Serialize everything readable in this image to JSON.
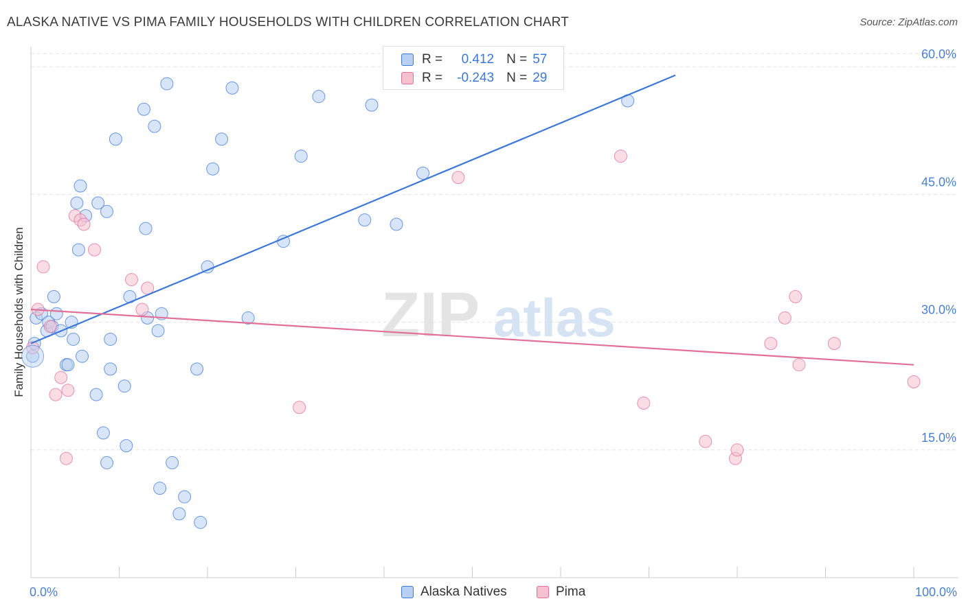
{
  "title": "ALASKA NATIVE VS PIMA FAMILY HOUSEHOLDS WITH CHILDREN CORRELATION CHART",
  "source": "Source: ZipAtlas.com",
  "watermark": {
    "zip": "ZIP",
    "atlas": "atlas"
  },
  "legend": {
    "row1": {
      "r_label": "R =",
      "r_value": "0.412",
      "n_label": "N =",
      "n_value": "57"
    },
    "row2": {
      "r_label": "R =",
      "r_value": "-0.243",
      "n_label": "N =",
      "n_value": "29"
    }
  },
  "colors": {
    "blue": "#3b78d8",
    "blue_fill": "#b8d0f2",
    "pink": "#e07098",
    "pink_fill": "#f6c0d0",
    "tick": "#4a7fd0"
  },
  "chart_data": {
    "type": "scatter",
    "title": "ALASKA NATIVE VS PIMA FAMILY HOUSEHOLDS WITH CHILDREN CORRELATION CHART",
    "ylabel": "Family Households with Children",
    "xlabel": "",
    "xlim": [
      0,
      100
    ],
    "ylim": [
      0,
      63
    ],
    "x_ticks": [
      "0.0%",
      "100.0%"
    ],
    "y_ticks": [
      {
        "value": 15,
        "label": "15.0%"
      },
      {
        "value": 30,
        "label": "30.0%"
      },
      {
        "value": 45,
        "label": "45.0%"
      },
      {
        "value": 60,
        "label": "60.0%"
      }
    ],
    "grid": true,
    "legend_position": "top-center",
    "series": [
      {
        "name": "Alaska Natives",
        "color": "#3b78d8",
        "points": [
          [
            0.2,
            26
          ],
          [
            0.4,
            27.5
          ],
          [
            0.6,
            30.5
          ],
          [
            1.2,
            31
          ],
          [
            1.8,
            29
          ],
          [
            2,
            30
          ],
          [
            2.4,
            29.5
          ],
          [
            2.6,
            33
          ],
          [
            2.9,
            31
          ],
          [
            3.4,
            29
          ],
          [
            4,
            25
          ],
          [
            4.2,
            25
          ],
          [
            4.6,
            30
          ],
          [
            4.8,
            28
          ],
          [
            5.2,
            44
          ],
          [
            5.4,
            38.5
          ],
          [
            5.6,
            46
          ],
          [
            5.8,
            26
          ],
          [
            6.2,
            42.5
          ],
          [
            7.4,
            21.5
          ],
          [
            7.6,
            44
          ],
          [
            8.2,
            17
          ],
          [
            8.6,
            43
          ],
          [
            8.6,
            13.5
          ],
          [
            9,
            28
          ],
          [
            9,
            24.5
          ],
          [
            9.6,
            51.5
          ],
          [
            10.6,
            22.5
          ],
          [
            10.8,
            15.5
          ],
          [
            11.2,
            33
          ],
          [
            12.8,
            55
          ],
          [
            13,
            41
          ],
          [
            13.2,
            30.5
          ],
          [
            14,
            53
          ],
          [
            14.4,
            29
          ],
          [
            14.6,
            10.5
          ],
          [
            14.8,
            31
          ],
          [
            15.4,
            58
          ],
          [
            16,
            13.5
          ],
          [
            16.8,
            7.5
          ],
          [
            17.4,
            9.5
          ],
          [
            18.8,
            24.5
          ],
          [
            19.2,
            6.5
          ],
          [
            20,
            36.5
          ],
          [
            20.6,
            48
          ],
          [
            21.6,
            51.5
          ],
          [
            22.8,
            57.5
          ],
          [
            24.6,
            30.5
          ],
          [
            28.6,
            39.5
          ],
          [
            30.6,
            49.5
          ],
          [
            32.6,
            56.5
          ],
          [
            37.8,
            42
          ],
          [
            38.6,
            55.5
          ],
          [
            41.4,
            41.5
          ],
          [
            44.4,
            47.5
          ],
          [
            67.6,
            56
          ]
        ],
        "trend": {
          "x": [
            0,
            73
          ],
          "y": [
            27.5,
            59
          ]
        }
      },
      {
        "name": "Pima",
        "color": "#e07098",
        "points": [
          [
            0.2,
            27
          ],
          [
            0.8,
            31.5
          ],
          [
            1.4,
            36.5
          ],
          [
            2.2,
            29.5
          ],
          [
            2.8,
            21.5
          ],
          [
            3.4,
            23.5
          ],
          [
            4,
            14
          ],
          [
            4.2,
            22
          ],
          [
            5,
            42.5
          ],
          [
            5.6,
            42
          ],
          [
            6,
            41.5
          ],
          [
            7.2,
            38.5
          ],
          [
            11.4,
            35
          ],
          [
            12.6,
            31.5
          ],
          [
            13.2,
            34
          ],
          [
            30.4,
            20
          ],
          [
            48.4,
            47
          ],
          [
            66.8,
            49.5
          ],
          [
            69.4,
            20.5
          ],
          [
            76.4,
            16
          ],
          [
            79.8,
            14
          ],
          [
            80,
            15
          ],
          [
            83.8,
            27.5
          ],
          [
            85.4,
            30.5
          ],
          [
            86.6,
            33
          ],
          [
            87,
            25
          ],
          [
            91,
            27.5
          ],
          [
            100,
            23
          ]
        ],
        "trend": {
          "x": [
            0,
            100
          ],
          "y": [
            31.5,
            25
          ]
        }
      }
    ]
  }
}
